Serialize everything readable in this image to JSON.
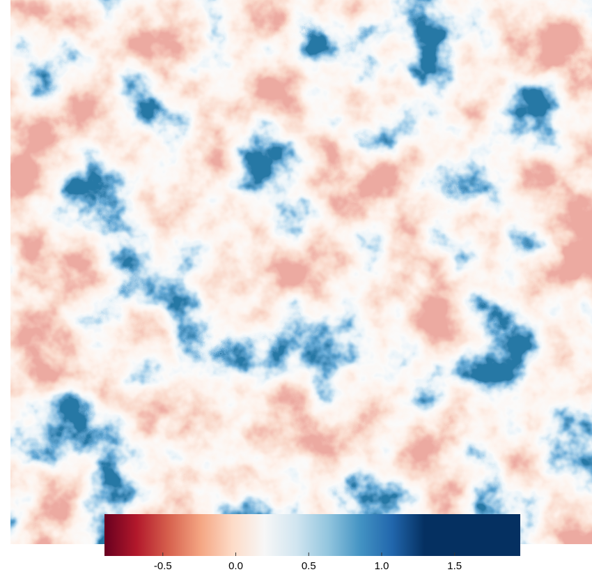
{
  "colorbar": {
    "lim": [
      -0.9,
      1.95
    ],
    "ticks": [
      -0.5,
      {
        "value": 0,
        "label": "0.0"
      },
      0.5,
      {
        "value": 1,
        "label": "1.0"
      },
      1.5
    ],
    "colors": [
      "#67001f",
      "#b2182b",
      "#d6604d",
      "#f4a582",
      "#fddbc7",
      "#f7f7f7",
      "#d1e5f0",
      "#92c5de",
      "#4393c3",
      "#2166ac",
      "#053061",
      "#053061",
      "#053061",
      "#053061"
    ]
  }
}
